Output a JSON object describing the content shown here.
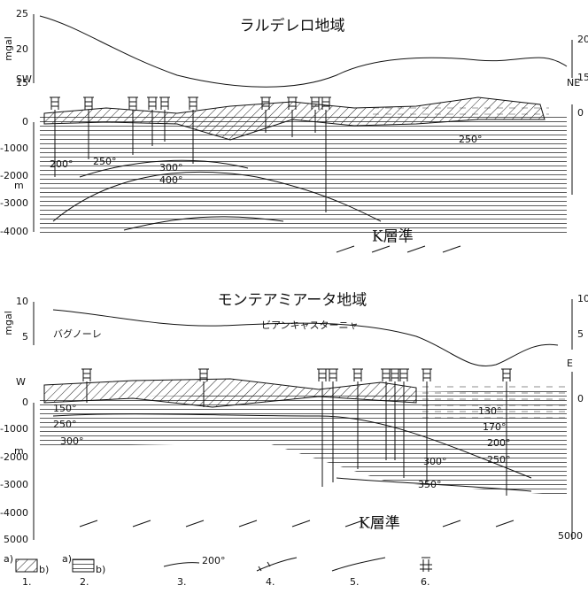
{
  "panels": [
    {
      "title": "ラルデレロ地域",
      "gravity_axis": {
        "unit": "mgal",
        "left_ticks": [
          "25",
          "20",
          "15"
        ],
        "right_ticks": [
          "20",
          "15"
        ]
      },
      "ends": [
        "SW",
        "NE"
      ],
      "depth_axis": {
        "unit": "m",
        "ticks": [
          "0",
          "-1000",
          "-2000",
          "-3000",
          "-4000"
        ],
        "right_ticks": [
          "0"
        ]
      },
      "isotherms": [
        "200°",
        "250°",
        "300°",
        "400°",
        "250°"
      ],
      "horizon": "K層準"
    },
    {
      "title": "モンテアミアータ地域",
      "gravity_axis": {
        "unit": "mgal",
        "left_ticks": [
          "10",
          "5"
        ],
        "right_ticks": [
          "10",
          "5"
        ]
      },
      "places": [
        "バグノーレ",
        "ビアンキャスターニャ"
      ],
      "ends": [
        "W",
        "E"
      ],
      "depth_axis": {
        "unit": "m",
        "ticks": [
          "0",
          "-1000",
          "-2000",
          "-3000",
          "-4000",
          "5000"
        ],
        "right_ticks": [
          "0",
          "5000"
        ]
      },
      "isotherms": [
        "150°",
        "250°",
        "300°",
        "130°",
        "170°",
        "200°",
        "250°",
        "300°",
        "350°"
      ],
      "horizon": "K層準"
    }
  ],
  "legend": {
    "sub_labels": [
      "a)",
      "b)",
      "a)",
      "b)"
    ],
    "isotherm_example": "200°",
    "numbers": [
      "1.",
      "2.",
      "3.",
      "4.",
      "5.",
      "6."
    ]
  }
}
